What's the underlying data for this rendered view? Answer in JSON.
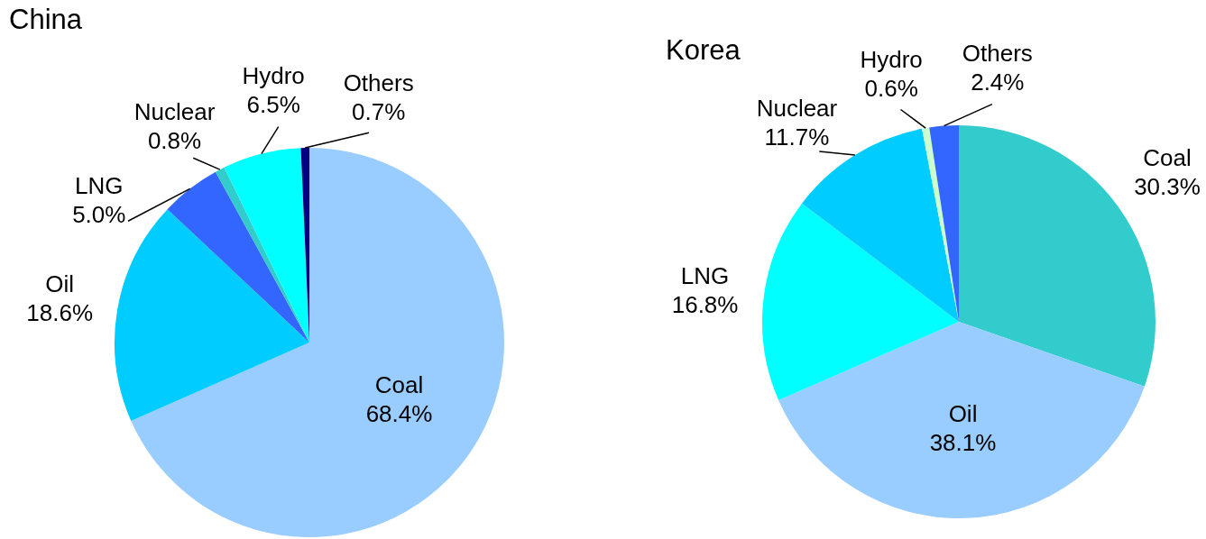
{
  "chart_data": [
    {
      "type": "pie",
      "title": "China",
      "categories": [
        "Coal",
        "Oil",
        "LNG",
        "Nuclear",
        "Hydro",
        "Others"
      ],
      "values": [
        68.4,
        18.6,
        5.0,
        0.8,
        6.5,
        0.7
      ],
      "value_labels": [
        "68.4%",
        "18.6%",
        "5.0%",
        "0.8%",
        "6.5%",
        "0.7%"
      ],
      "colors": [
        "#99ccff",
        "#00ccff",
        "#3366ff",
        "#33cccc",
        "#00ffff",
        "#000080"
      ]
    },
    {
      "type": "pie",
      "title": "Korea",
      "categories": [
        "Coal",
        "Oil",
        "LNG",
        "Nuclear",
        "Hydro",
        "Others"
      ],
      "values": [
        30.3,
        38.1,
        16.8,
        11.7,
        0.6,
        2.4
      ],
      "value_labels": [
        "30.3%",
        "38.1%",
        "16.8%",
        "11.7%",
        "0.6%",
        "2.4%"
      ],
      "colors": [
        "#33cccc",
        "#99ccff",
        "#00ffff",
        "#00ccff",
        "#ccffcc",
        "#3366ff"
      ]
    }
  ]
}
